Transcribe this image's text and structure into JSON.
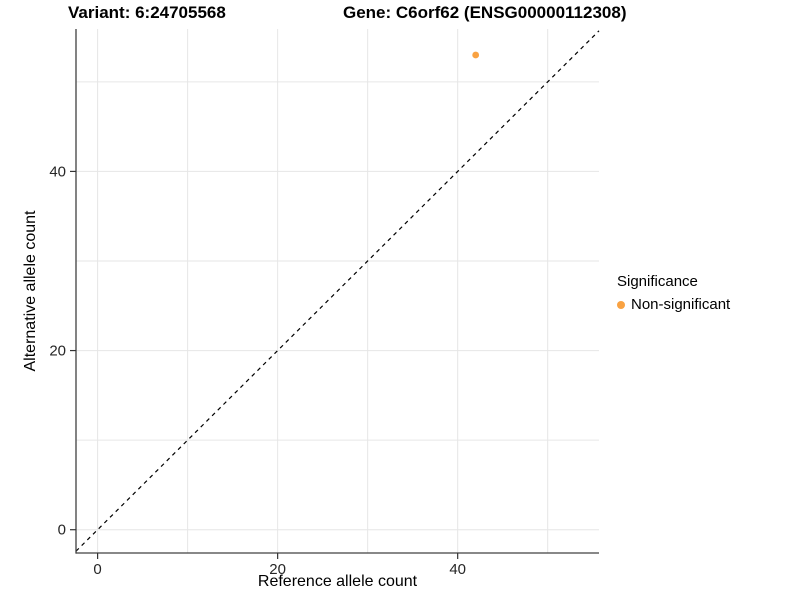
{
  "figure": {
    "title_variant": "Variant: 6:24705568",
    "title_gene": "Gene: C6orf62 (ENSG00000112308)"
  },
  "axes": {
    "x_title": "Reference allele count",
    "y_title": "Alternative allele count"
  },
  "legend": {
    "title": "Significance",
    "items": [
      {
        "label": "Non-significant",
        "marker": "filled-circle",
        "color": "#F9A242"
      }
    ]
  },
  "colors": {
    "point": "#F9A242",
    "grid": "#E6E6E6",
    "axis_line": "#404040",
    "tick_mark": "#333333",
    "tick_text": "#262626",
    "dashed_line": "#000000",
    "background": "#FFFFFF"
  },
  "chart_data": {
    "type": "scatter",
    "title": "Variant: 6:24705568   Gene: C6orf62 (ENSG00000112308)",
    "xlabel": "Reference allele count",
    "ylabel": "Alternative allele count",
    "xlim": [
      -2.4,
      55.7
    ],
    "ylim": [
      -2.6,
      55.9
    ],
    "x_ticks": [
      0,
      20,
      40
    ],
    "y_ticks": [
      0,
      20,
      40
    ],
    "x_gridlines": [
      0,
      10,
      20,
      30,
      40,
      50
    ],
    "y_gridlines": [
      0,
      10,
      20,
      30,
      40,
      50
    ],
    "grid": "on",
    "legend_position": "right-middle",
    "series": [
      {
        "name": "Non-significant",
        "color": "#F9A242",
        "marker": "circle",
        "points": [
          {
            "x": 42,
            "y": 53
          }
        ]
      }
    ],
    "reference_line": {
      "kind": "identity",
      "equation": "y = x",
      "style": "dashed",
      "color": "#000000"
    }
  }
}
